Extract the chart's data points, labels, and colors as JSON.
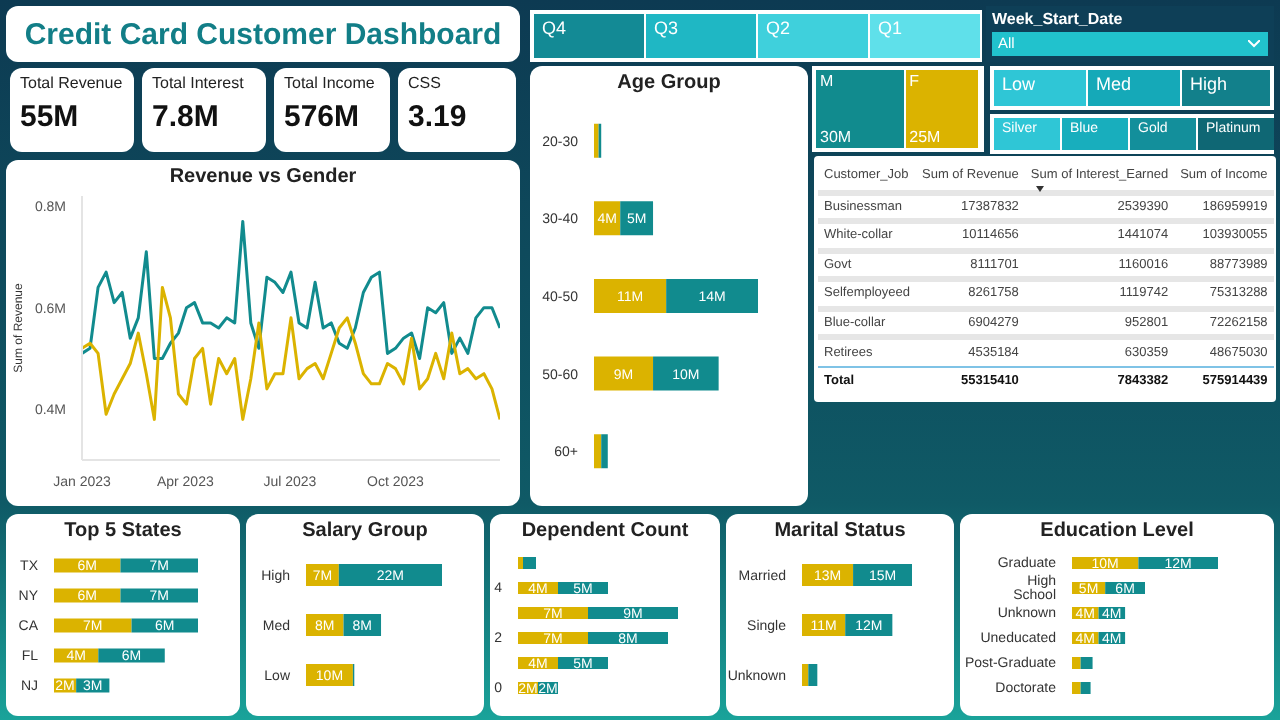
{
  "chart_data": [
    {
      "type": "other",
      "title": "Credit Card Customer Dashboard",
      "categories": [
        "Total Revenue",
        "Total Interest",
        "Total Income",
        "CSS"
      ],
      "value_labels": [
        "55M",
        "7.8M",
        "576M",
        "3.19"
      ]
    },
    {
      "type": "other",
      "annotations": [
        "Q4",
        "Q3",
        "Q2",
        "Q1",
        "Week_Start_Date",
        "All",
        "Low",
        "Med",
        "High",
        "Silver",
        "Blue",
        "Gold",
        "Platinum"
      ]
    },
    {
      "type": "line",
      "title": "Revenue vs Gender",
      "ylabel": "Sum of Revenue",
      "x": [
        "2023-01-01",
        "2023-01-08",
        "2023-01-15",
        "2023-01-22",
        "2023-01-29",
        "2023-02-05",
        "2023-02-12",
        "2023-02-19",
        "2023-02-26",
        "2023-03-05",
        "2023-03-12",
        "2023-03-19",
        "2023-03-26",
        "2023-04-02",
        "2023-04-09",
        "2023-04-16",
        "2023-04-23",
        "2023-04-30",
        "2023-05-07",
        "2023-05-14",
        "2023-05-21",
        "2023-05-28",
        "2023-06-04",
        "2023-06-11",
        "2023-06-18",
        "2023-06-25",
        "2023-07-02",
        "2023-07-09",
        "2023-07-16",
        "2023-07-23",
        "2023-07-30",
        "2023-08-06",
        "2023-08-13",
        "2023-08-20",
        "2023-08-27",
        "2023-09-03",
        "2023-09-10",
        "2023-09-17",
        "2023-09-24",
        "2023-10-01",
        "2023-10-08",
        "2023-10-15",
        "2023-10-22",
        "2023-10-29",
        "2023-11-05",
        "2023-11-12",
        "2023-11-19",
        "2023-11-26",
        "2023-12-03",
        "2023-12-10",
        "2023-12-17",
        "2023-12-24",
        "2023-12-31"
      ],
      "xlim": [
        "2023-01-01",
        "2023-12-31"
      ],
      "xticks": [
        {
          "value": "2023-01-01",
          "label": "Jan 2023"
        },
        {
          "value": "2023-04-01",
          "label": "Apr 2023"
        },
        {
          "value": "2023-07-01",
          "label": "Jul 2023"
        },
        {
          "value": "2023-10-01",
          "label": "Oct 2023"
        }
      ],
      "ylim": [
        0.3,
        0.82
      ],
      "yticks": [
        {
          "value": 0.4,
          "label": "0.4M"
        },
        {
          "value": 0.6,
          "label": "0.6M"
        },
        {
          "value": 0.8,
          "label": "0.8M"
        }
      ],
      "marker": "none",
      "line_style": "solid",
      "series": [
        {
          "color": "#118b8e",
          "values": [
            0.51,
            0.52,
            0.64,
            0.67,
            0.61,
            0.63,
            0.54,
            0.58,
            0.71,
            0.5,
            0.5,
            0.53,
            0.55,
            0.6,
            0.61,
            0.57,
            0.57,
            0.56,
            0.58,
            0.57,
            0.77,
            0.57,
            0.52,
            0.66,
            0.65,
            0.63,
            0.67,
            0.57,
            0.56,
            0.65,
            0.56,
            0.57,
            0.53,
            0.52,
            0.56,
            0.63,
            0.66,
            0.67,
            0.51,
            0.52,
            0.54,
            0.55,
            0.5,
            0.6,
            0.59,
            0.61,
            0.51,
            0.54,
            0.51,
            0.58,
            0.6,
            0.6,
            0.56
          ]
        },
        {
          "color": "#dbb300",
          "values": [
            0.52,
            0.53,
            0.51,
            0.39,
            0.43,
            0.46,
            0.49,
            0.55,
            0.47,
            0.38,
            0.64,
            0.58,
            0.43,
            0.41,
            0.5,
            0.52,
            0.41,
            0.5,
            0.47,
            0.5,
            0.38,
            0.46,
            0.57,
            0.44,
            0.47,
            0.47,
            0.58,
            0.46,
            0.48,
            0.49,
            0.46,
            0.51,
            0.56,
            0.58,
            0.53,
            0.47,
            0.45,
            0.45,
            0.49,
            0.48,
            0.45,
            0.54,
            0.44,
            0.46,
            0.51,
            0.46,
            0.55,
            0.47,
            0.48,
            0.46,
            0.47,
            0.44,
            0.38
          ]
        }
      ]
    },
    {
      "type": "bar",
      "orientation": "horizontal",
      "stacked": true,
      "title": "Age Group",
      "categories": [
        "20-30",
        "30-40",
        "40-50",
        "50-60",
        "60+"
      ],
      "series": [
        {
          "color": "#dbb300",
          "values": [
            0.7,
            4,
            11,
            9,
            1.1
          ],
          "value_labels": [
            null,
            "4M",
            "11M",
            "9M",
            null
          ]
        },
        {
          "color": "#118b8e",
          "values": [
            0.4,
            5,
            14,
            10,
            1
          ],
          "value_labels": [
            null,
            "5M",
            "14M",
            "10M",
            null
          ]
        }
      ]
    },
    {
      "type": "other",
      "categories": [
        "M",
        "F"
      ],
      "values": [
        30,
        25
      ],
      "value_labels": [
        "30M",
        "25M"
      ],
      "colors": [
        "#118b8e",
        "#dbb300"
      ]
    },
    {
      "type": "other",
      "xlabel": "Customer_Job",
      "categories": [
        "Businessman",
        "White-collar",
        "Govt",
        "Selfemployeed",
        "Blue-collar",
        "Retirees",
        "Total"
      ],
      "data_labels": true,
      "series": [
        {
          "name": "Sum of Revenue",
          "values": [
            17387832,
            10114656,
            8111701,
            8261758,
            6904279,
            4535184,
            55315410
          ]
        },
        {
          "name": "Sum of Interest_Earned",
          "values": [
            2539390,
            1441074,
            1160016,
            1119742,
            952801,
            630359,
            7843382
          ]
        },
        {
          "name": "Sum of Income",
          "values": [
            186959919,
            103930055,
            88773989,
            75313288,
            72262158,
            48675030,
            575914439
          ]
        }
      ]
    },
    {
      "type": "bar",
      "orientation": "horizontal",
      "stacked": true,
      "title": "Top 5 States",
      "categories": [
        "TX",
        "NY",
        "CA",
        "FL",
        "NJ"
      ],
      "series": [
        {
          "color": "#dbb300",
          "values": [
            6,
            6,
            7,
            4,
            2
          ],
          "value_labels": [
            "6M",
            "6M",
            "7M",
            "4M",
            "2M"
          ]
        },
        {
          "color": "#118b8e",
          "values": [
            7,
            7,
            6,
            6,
            3
          ],
          "value_labels": [
            "7M",
            "7M",
            "6M",
            "6M",
            "3M"
          ]
        }
      ]
    },
    {
      "type": "bar",
      "orientation": "horizontal",
      "stacked": true,
      "title": "Salary Group",
      "categories": [
        "High",
        "Med",
        "Low"
      ],
      "series": [
        {
          "color": "#dbb300",
          "values": [
            7,
            8,
            10
          ],
          "value_labels": [
            "7M",
            "8M",
            "10M"
          ]
        },
        {
          "color": "#118b8e",
          "values": [
            22,
            8,
            0.3
          ],
          "value_labels": [
            "22M",
            "8M",
            null
          ]
        }
      ]
    },
    {
      "type": "bar",
      "orientation": "horizontal",
      "stacked": true,
      "title": "Dependent Count",
      "categories": [
        null,
        "4",
        null,
        "2",
        null,
        "0"
      ],
      "series": [
        {
          "color": "#dbb300",
          "values": [
            0.5,
            4,
            7,
            7,
            4,
            2
          ],
          "value_labels": [
            null,
            "4M",
            "7M",
            "7M",
            "4M",
            "2M"
          ]
        },
        {
          "color": "#118b8e",
          "values": [
            1.3,
            5,
            9,
            8,
            5,
            2
          ],
          "value_labels": [
            null,
            "5M",
            "9M",
            "8M",
            "5M",
            "2M"
          ]
        }
      ]
    },
    {
      "type": "bar",
      "orientation": "horizontal",
      "stacked": true,
      "title": "Marital Status",
      "categories": [
        "Married",
        "Single",
        "Unknown"
      ],
      "series": [
        {
          "color": "#dbb300",
          "values": [
            13,
            11,
            1.6
          ],
          "value_labels": [
            "13M",
            "11M",
            null
          ]
        },
        {
          "color": "#118b8e",
          "values": [
            15,
            12,
            2.3
          ],
          "value_labels": [
            "15M",
            "12M",
            null
          ]
        }
      ]
    },
    {
      "type": "bar",
      "orientation": "horizontal",
      "stacked": true,
      "title": "Education Level",
      "categories": [
        "Graduate",
        "High School",
        "Unknown",
        "Uneducated",
        "Post-Graduate",
        "Doctorate"
      ],
      "series": [
        {
          "color": "#dbb300",
          "values": [
            10,
            5,
            4,
            4,
            1.3,
            1.3
          ],
          "value_labels": [
            "10M",
            "5M",
            "4M",
            "4M",
            null,
            null
          ]
        },
        {
          "color": "#118b8e",
          "values": [
            12,
            6,
            4,
            4,
            1.8,
            1.5
          ],
          "value_labels": [
            "12M",
            "6M",
            "4M",
            "4M",
            null,
            null
          ]
        }
      ]
    }
  ]
}
